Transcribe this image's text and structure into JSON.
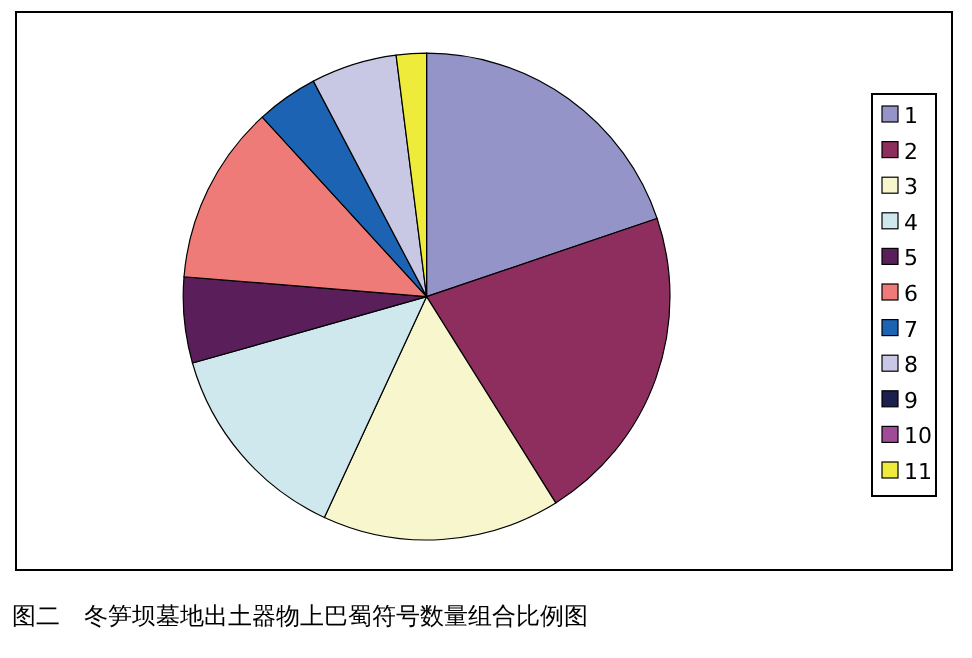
{
  "chart_data": {
    "type": "pie",
    "title": "图二　冬笋坝墓地出土器物上巴蜀符号数量组合比例图",
    "categories": [
      "1",
      "2",
      "3",
      "4",
      "5",
      "6",
      "7",
      "8",
      "9",
      "10",
      "11"
    ],
    "values": [
      19.8,
      21.3,
      15.8,
      13.7,
      5.7,
      11.9,
      4.1,
      5.7,
      0,
      0,
      2.0
    ],
    "colors": [
      "#9494c8",
      "#8e2e5e",
      "#f8f6cc",
      "#cfe8ee",
      "#5a1f5a",
      "#ee7b78",
      "#1c63b3",
      "#c8c8e4",
      "#1a1f4e",
      "#a04a9a",
      "#eeeb3a"
    ],
    "legend": "right"
  }
}
